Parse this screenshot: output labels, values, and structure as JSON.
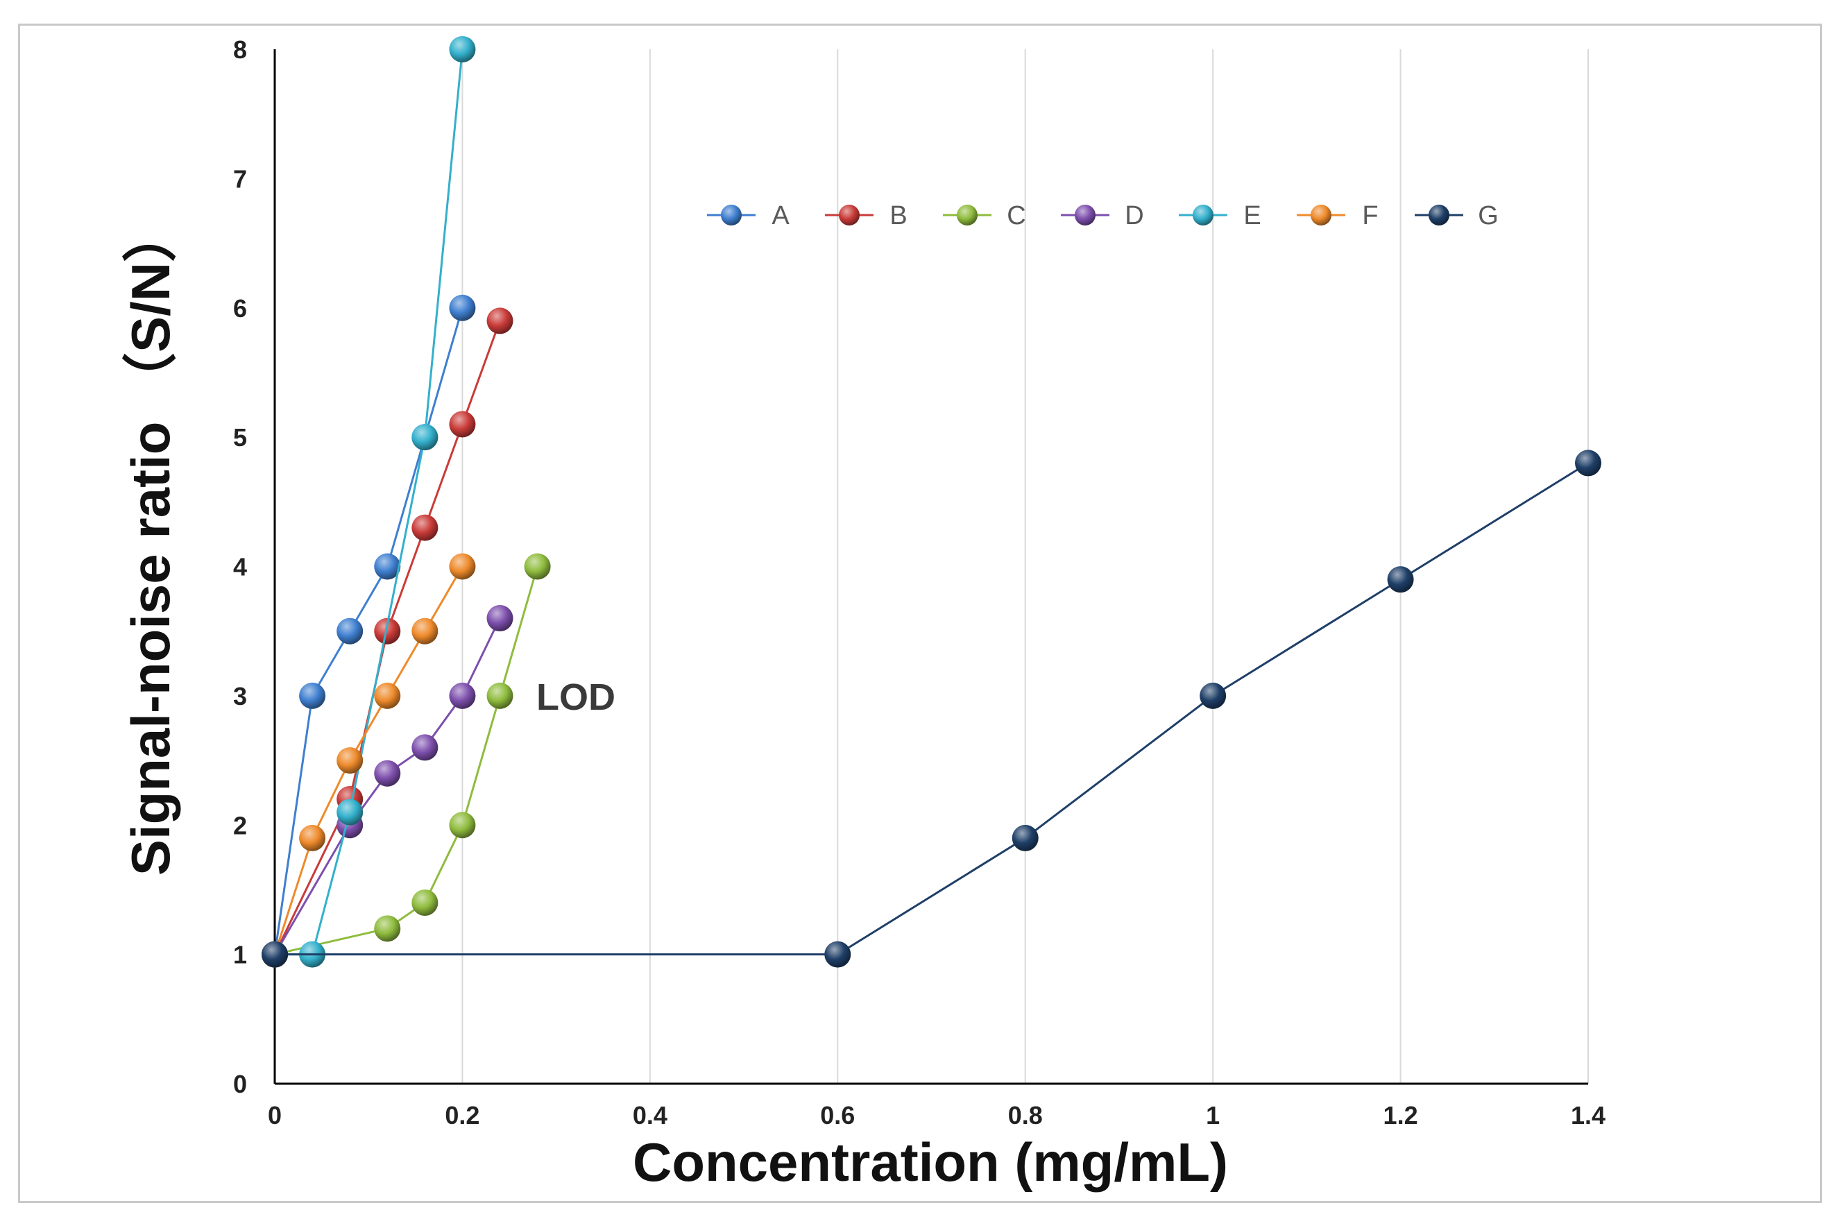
{
  "chart_data": {
    "type": "line",
    "title": "",
    "xlabel": "Concentration (mg/mL)",
    "ylabel": "Signal-noise ratio （S/N）",
    "xlim": [
      0,
      1.4
    ],
    "ylim": [
      0,
      8
    ],
    "x_ticks": [
      0,
      0.2,
      0.4,
      0.6,
      0.8,
      1,
      1.2,
      1.4
    ],
    "x_tick_labels": [
      "0",
      "0.2",
      "0.4",
      "0.6",
      "0.8",
      "1",
      "1.2",
      "1.4"
    ],
    "y_ticks": [
      0,
      1,
      2,
      3,
      4,
      5,
      6,
      7,
      8
    ],
    "y_tick_labels": [
      "0",
      "1",
      "2",
      "3",
      "4",
      "5",
      "6",
      "7",
      "8"
    ],
    "grid": "vertical",
    "legend_position": "top-right",
    "annotations": [
      {
        "text": "LOD",
        "x": 0.28,
        "y": 3
      }
    ],
    "series": [
      {
        "name": "A",
        "color": "#3f7fd0",
        "x": [
          0,
          0.04,
          0.08,
          0.12,
          0.16,
          0.2
        ],
        "y": [
          1,
          3,
          3.5,
          4,
          5,
          6
        ]
      },
      {
        "name": "B",
        "color": "#c93b38",
        "x": [
          0,
          0.08,
          0.12,
          0.16,
          0.2,
          0.24
        ],
        "y": [
          1,
          2.2,
          3.5,
          4.3,
          5.1,
          5.9
        ]
      },
      {
        "name": "C",
        "color": "#8fbc3e",
        "x": [
          0,
          0.12,
          0.16,
          0.2,
          0.24,
          0.28
        ],
        "y": [
          1,
          1.2,
          1.4,
          2,
          3,
          4
        ]
      },
      {
        "name": "D",
        "color": "#7d4fad",
        "x": [
          0,
          0.08,
          0.12,
          0.16,
          0.2,
          0.24
        ],
        "y": [
          1,
          2,
          2.4,
          2.6,
          3,
          3.6
        ]
      },
      {
        "name": "E",
        "color": "#33b0cc",
        "x": [
          0,
          0.04,
          0.08,
          0.16,
          0.2
        ],
        "y": [
          1,
          1,
          2.1,
          5,
          8
        ]
      },
      {
        "name": "F",
        "color": "#ee8a2b",
        "x": [
          0,
          0.04,
          0.08,
          0.12,
          0.16,
          0.2
        ],
        "y": [
          1,
          1.9,
          2.5,
          3,
          3.5,
          4
        ]
      },
      {
        "name": "G",
        "color": "#1f3f68",
        "x": [
          0,
          0.6,
          0.8,
          1,
          1.2,
          1.4
        ],
        "y": [
          1,
          1,
          1.9,
          3,
          3.9,
          4.8
        ]
      }
    ]
  }
}
